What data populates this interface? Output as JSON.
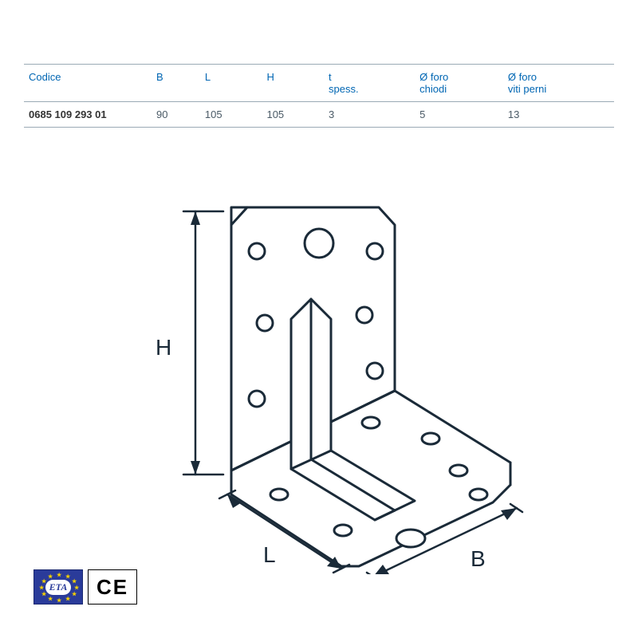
{
  "table": {
    "header_color": "#0066b3",
    "border_color": "#9aaab5",
    "columns": [
      "Codice",
      "B",
      "L",
      "H",
      "t\nspess.",
      "Ø foro\nchiodi",
      "Ø foro\nviti perni"
    ],
    "rows": [
      [
        "0685 109 293 01",
        "90",
        "105",
        "105",
        "3",
        "5",
        "13"
      ]
    ]
  },
  "diagram": {
    "stroke": "#1a2a38",
    "fill": "#ffffff",
    "label_font_size": 28,
    "labels": {
      "H": "H",
      "L": "L",
      "B": "B"
    }
  },
  "badges": {
    "eta": {
      "text": "ETA",
      "bg": "#2a3b9a",
      "star_color": "#f7d100"
    },
    "ce": {
      "text": "CE"
    }
  }
}
